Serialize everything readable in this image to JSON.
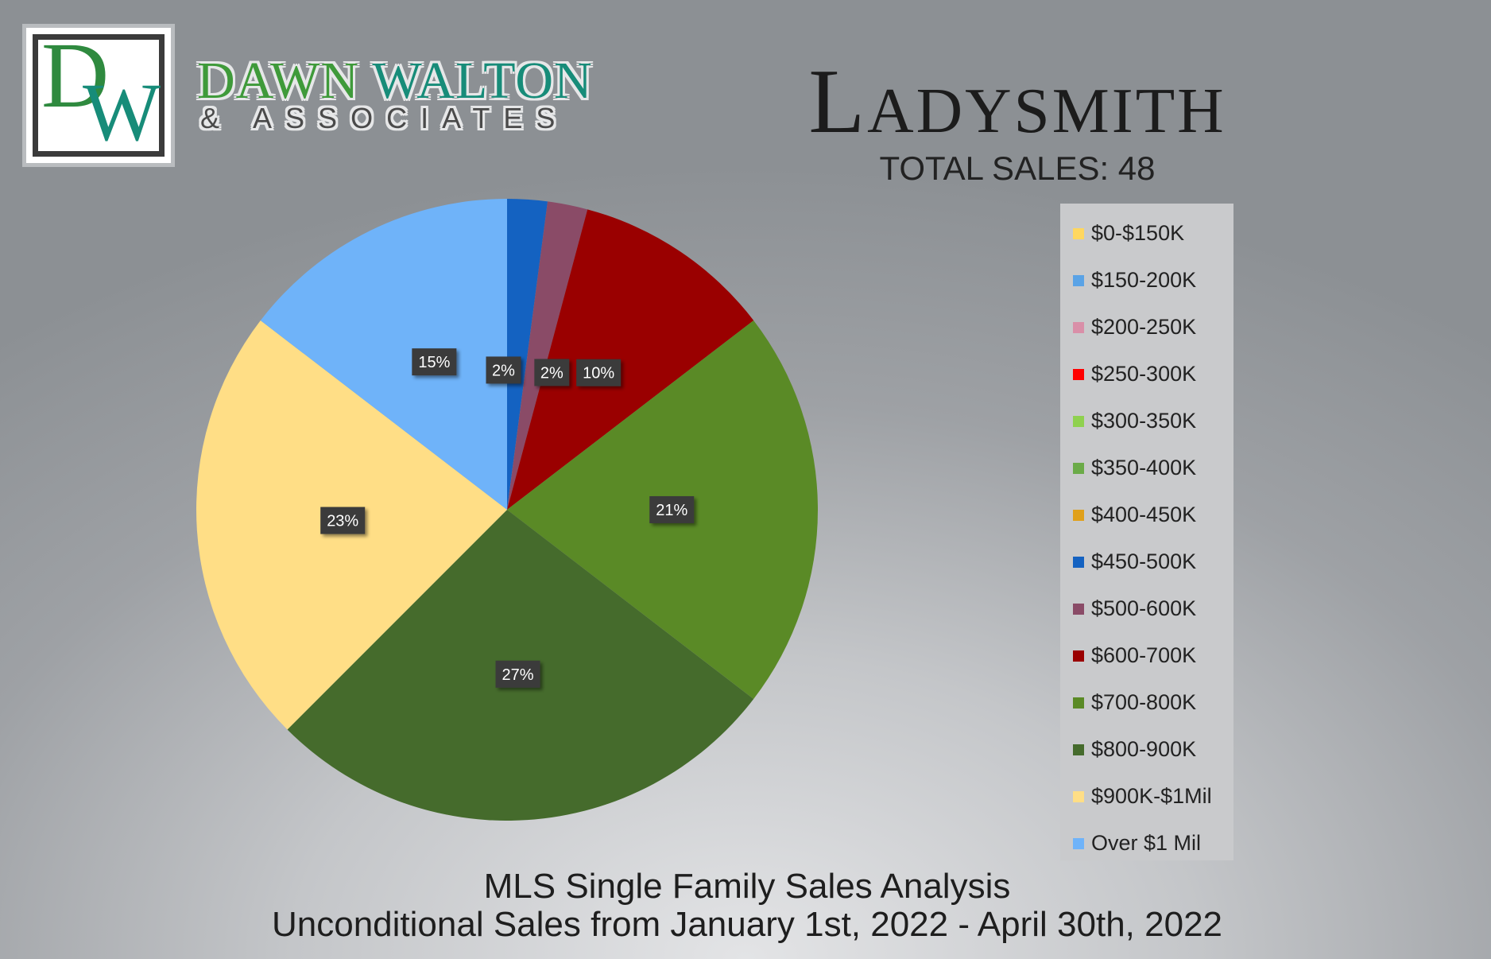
{
  "brand": {
    "logo_d": "D",
    "logo_w": "W",
    "name_first": "DAWN",
    "name_last": "WALTON",
    "subtitle": "& ASSOCIATES"
  },
  "header": {
    "city": "Ladysmith",
    "total_sales": "TOTAL SALES: 48"
  },
  "footer": {
    "title": "MLS Single Family Sales Analysis",
    "subtitle": "Unconditional Sales from January 1st, 2022 - April 30th, 2022"
  },
  "chart_data": {
    "type": "pie",
    "start_angle_deg": 0,
    "direction": "clockwise",
    "legend_position": "right",
    "slices": [
      {
        "name": "$0-$150K",
        "value": 0,
        "label": "",
        "color": "#ffd75e"
      },
      {
        "name": "$150-200K",
        "value": 0,
        "label": "",
        "color": "#5aa3e6"
      },
      {
        "name": "$200-250K",
        "value": 0,
        "label": "",
        "color": "#d98fa8"
      },
      {
        "name": "$250-300K",
        "value": 0,
        "label": "",
        "color": "#ff0000"
      },
      {
        "name": "$300-350K",
        "value": 0,
        "label": "",
        "color": "#8fd14f"
      },
      {
        "name": "$350-400K",
        "value": 0,
        "label": "",
        "color": "#6bab48"
      },
      {
        "name": "$400-450K",
        "value": 0,
        "label": "",
        "color": "#e0a01a"
      },
      {
        "name": "$450-500K",
        "value": 1,
        "label": "2%",
        "color": "#1462c1"
      },
      {
        "name": "$500-600K",
        "value": 1,
        "label": "2%",
        "color": "#8a4b67"
      },
      {
        "name": "$600-700K",
        "value": 5,
        "label": "10%",
        "color": "#9a0000"
      },
      {
        "name": "$700-800K",
        "value": 10,
        "label": "21%",
        "color": "#5a8a26"
      },
      {
        "name": "$800-900K",
        "value": 13,
        "label": "27%",
        "color": "#456b2c"
      },
      {
        "name": "$900K-$1Mil",
        "value": 11,
        "label": "23%",
        "color": "#ffde86"
      },
      {
        "name": "Over $1 Mil",
        "value": 7,
        "label": "15%",
        "color": "#6fb3f9"
      }
    ]
  }
}
